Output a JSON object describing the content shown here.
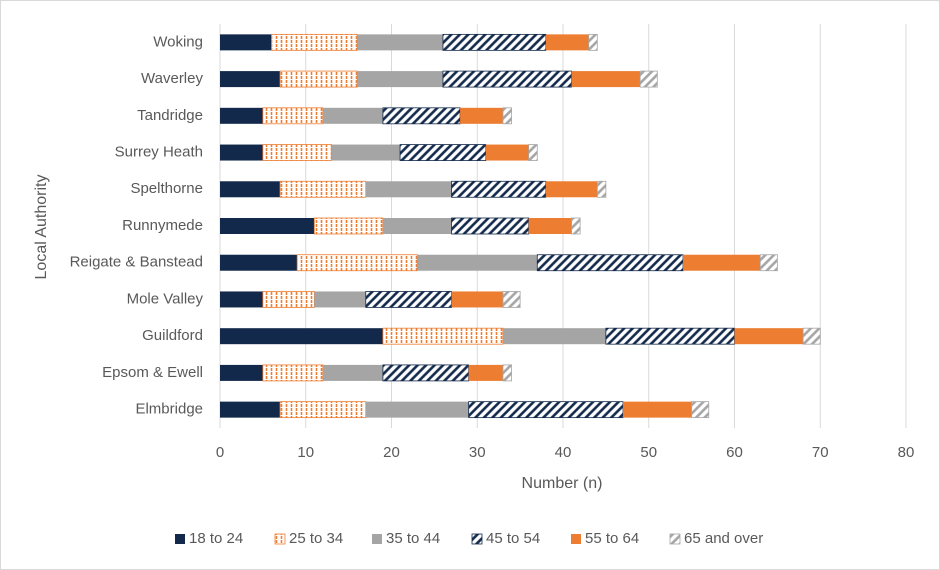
{
  "chart_data": {
    "type": "stacked-barh",
    "x_label": "Number (n)",
    "y_label": "Local Authority",
    "categories": [
      "Elmbridge",
      "Epsom & Ewell",
      "Guildford",
      "Mole Valley",
      "Reigate & Banstead",
      "Runnymede",
      "Spelthorne",
      "Surrey Heath",
      "Tandridge",
      "Waverley",
      "Woking"
    ],
    "series": [
      {
        "name": "18 to 24",
        "color": "#13294b",
        "hatch": "solid",
        "values": [
          7,
          5,
          19,
          5,
          9,
          11,
          7,
          5,
          5,
          7,
          6
        ]
      },
      {
        "name": "25 to 34",
        "color": "#ed7d31",
        "hatch": "vertical",
        "values": [
          10,
          7,
          14,
          6,
          14,
          8,
          10,
          8,
          7,
          9,
          10
        ]
      },
      {
        "name": "35 to 44",
        "color": "#a5a5a5",
        "hatch": "solid",
        "values": [
          12,
          7,
          12,
          6,
          14,
          8,
          10,
          8,
          7,
          10,
          10
        ]
      },
      {
        "name": "45 to 54",
        "color": "#13294b",
        "hatch": "diagonal",
        "values": [
          18,
          10,
          15,
          10,
          17,
          9,
          11,
          10,
          9,
          15,
          12
        ]
      },
      {
        "name": "55 to 64",
        "color": "#ed7d31",
        "hatch": "solid",
        "values": [
          8,
          4,
          8,
          6,
          9,
          5,
          6,
          5,
          5,
          8,
          5
        ]
      },
      {
        "name": "65 and over",
        "color": "#a5a5a5",
        "hatch": "diagonal",
        "values": [
          2,
          1,
          2,
          2,
          2,
          1,
          1,
          1,
          1,
          2,
          1
        ]
      }
    ],
    "xlim": [
      0,
      80
    ],
    "xticks": [
      0,
      10,
      20,
      30,
      40,
      50,
      60,
      70,
      80
    ],
    "grid": true,
    "legend": "bottom"
  }
}
